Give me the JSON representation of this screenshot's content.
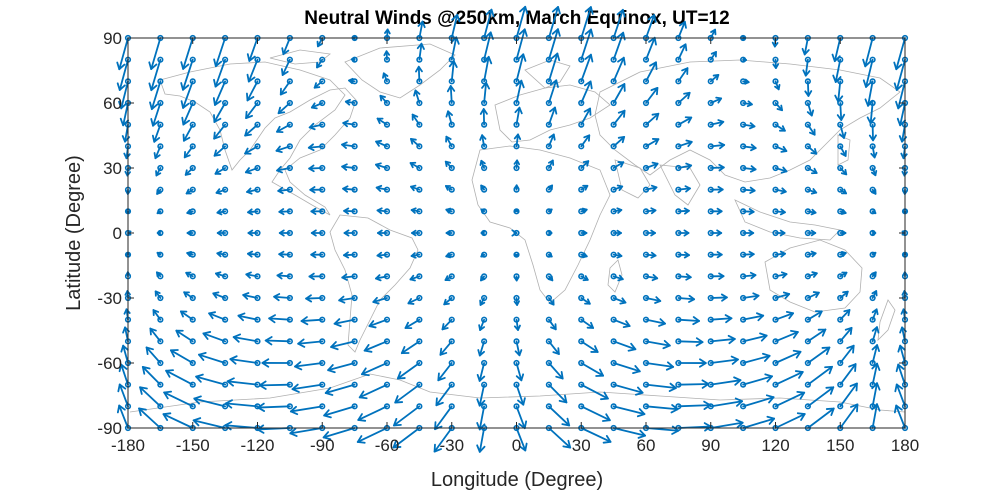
{
  "chart_data": {
    "type": "quiver",
    "title": "Neutral Winds @250km, March Equinox, UT=12",
    "xlabel": "Longitude (Degree)",
    "ylabel": "Latitude (Degree)",
    "xlim": [
      -180,
      180
    ],
    "ylim": [
      -90,
      90
    ],
    "xticks": [
      -180,
      -150,
      -120,
      -90,
      -60,
      -30,
      0,
      30,
      60,
      90,
      120,
      150,
      180
    ],
    "yticks": [
      -90,
      -60,
      -30,
      0,
      30,
      60,
      90
    ],
    "grid_spacing": {
      "longitude": 15,
      "latitude": 10
    },
    "subsolar_longitude": 0,
    "arrow_color": "#0072bd",
    "coastline_color": "#b0b0b0",
    "background": "continents",
    "grid": false,
    "box": true
  }
}
